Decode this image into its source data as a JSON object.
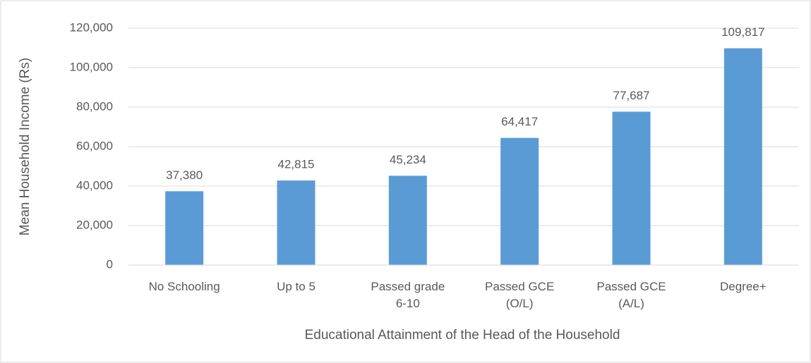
{
  "chart_data": {
    "type": "bar",
    "categories": [
      "No Schooling",
      "Up to 5",
      "Passed grade 6-10",
      "Passed GCE (O/L)",
      "Passed GCE (A/L)",
      "Degree+"
    ],
    "values": [
      37380,
      42815,
      45234,
      64417,
      77687,
      109817
    ],
    "value_labels": [
      "37,380",
      "42,815",
      "45,234",
      "64,417",
      "77,687",
      "109,817"
    ],
    "color": "#5b9bd5",
    "ylim": [
      0,
      120000
    ],
    "yticks": [
      0,
      {
        "value": 20000,
        "label": "20,000"
      },
      {
        "value": 40000,
        "label": "40,000"
      },
      {
        "value": 60000,
        "label": "60,000"
      },
      {
        "value": 80000,
        "label": "80,000"
      },
      {
        "value": 100000,
        "label": "100,000"
      },
      {
        "value": 120000,
        "label": "120,000"
      }
    ],
    "grid": true,
    "xlabel": "Educational Attainment of the Head of the Household",
    "ylabel": "Mean Household Income (Rs)"
  }
}
